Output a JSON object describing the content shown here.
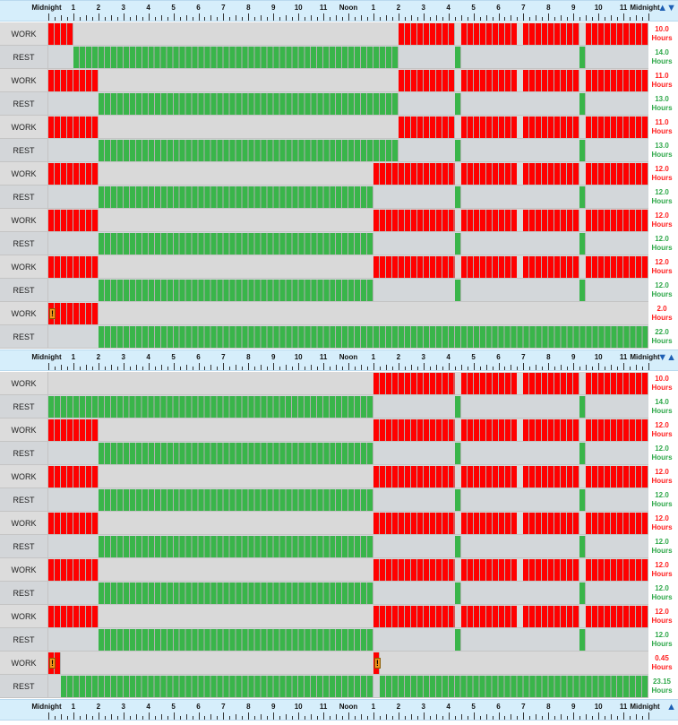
{
  "axis_labels": [
    "Midnight",
    "1",
    "2",
    "3",
    "4",
    "5",
    "6",
    "7",
    "8",
    "9",
    "10",
    "11",
    "Noon",
    "1",
    "2",
    "3",
    "4",
    "5",
    "6",
    "7",
    "8",
    "9",
    "10",
    "11",
    "Midnight"
  ],
  "colors": {
    "work": "#ff0000",
    "rest": "#39b54a",
    "warning": "#f7941d",
    "ruler": "#d6eefb",
    "arrow": "#1e5fb4"
  },
  "icons": {
    "scroll_up_down": "double-arrow-icon",
    "warning": "warning-icon"
  },
  "controls": {
    "arrows_top": "▲▼",
    "arrows_mid": "▼▲",
    "arrows_bottom": "▲"
  },
  "unit_label": "Hours",
  "warning_symbol": "!",
  "schedule_1": [
    {
      "label": "WORK",
      "type": "work",
      "hours": "10.0",
      "segments": [
        [
          0,
          1
        ],
        [
          14,
          16.25
        ],
        [
          16.5,
          18.75
        ],
        [
          19,
          21.25
        ],
        [
          21.5,
          24
        ]
      ],
      "warnings": []
    },
    {
      "label": "REST",
      "type": "rest",
      "hours": "14.0",
      "segments": [
        [
          1,
          14
        ],
        [
          16.25,
          16.5
        ],
        [
          21.25,
          21.5
        ]
      ],
      "warnings": []
    },
    {
      "label": "WORK",
      "type": "work",
      "hours": "11.0",
      "segments": [
        [
          0,
          2
        ],
        [
          14,
          16.25
        ],
        [
          16.5,
          18.75
        ],
        [
          19,
          21.25
        ],
        [
          21.5,
          24
        ]
      ],
      "warnings": []
    },
    {
      "label": "REST",
      "type": "rest",
      "hours": "13.0",
      "segments": [
        [
          2,
          14
        ],
        [
          16.25,
          16.5
        ],
        [
          21.25,
          21.5
        ]
      ],
      "warnings": []
    },
    {
      "label": "WORK",
      "type": "work",
      "hours": "11.0",
      "segments": [
        [
          0,
          2
        ],
        [
          14,
          16.25
        ],
        [
          16.5,
          18.75
        ],
        [
          19,
          21.25
        ],
        [
          21.5,
          24
        ]
      ],
      "warnings": []
    },
    {
      "label": "REST",
      "type": "rest",
      "hours": "13.0",
      "segments": [
        [
          2,
          14
        ],
        [
          16.25,
          16.5
        ],
        [
          21.25,
          21.5
        ]
      ],
      "warnings": []
    },
    {
      "label": "WORK",
      "type": "work",
      "hours": "12.0",
      "segments": [
        [
          0,
          2
        ],
        [
          13,
          16.25
        ],
        [
          16.5,
          18.75
        ],
        [
          19,
          21.25
        ],
        [
          21.5,
          24
        ]
      ],
      "warnings": []
    },
    {
      "label": "REST",
      "type": "rest",
      "hours": "12.0",
      "segments": [
        [
          2,
          13
        ],
        [
          16.25,
          16.5
        ],
        [
          21.25,
          21.5
        ]
      ],
      "warnings": []
    },
    {
      "label": "WORK",
      "type": "work",
      "hours": "12.0",
      "segments": [
        [
          0,
          2
        ],
        [
          13,
          16.25
        ],
        [
          16.5,
          18.75
        ],
        [
          19,
          21.25
        ],
        [
          21.5,
          24
        ]
      ],
      "warnings": []
    },
    {
      "label": "REST",
      "type": "rest",
      "hours": "12.0",
      "segments": [
        [
          2,
          13
        ],
        [
          16.25,
          16.5
        ],
        [
          21.25,
          21.5
        ]
      ],
      "warnings": []
    },
    {
      "label": "WORK",
      "type": "work",
      "hours": "12.0",
      "segments": [
        [
          0,
          2
        ],
        [
          13,
          16.25
        ],
        [
          16.5,
          18.75
        ],
        [
          19,
          21.25
        ],
        [
          21.5,
          24
        ]
      ],
      "warnings": []
    },
    {
      "label": "REST",
      "type": "rest",
      "hours": "12.0",
      "segments": [
        [
          2,
          13
        ],
        [
          16.25,
          16.5
        ],
        [
          21.25,
          21.5
        ]
      ],
      "warnings": []
    },
    {
      "label": "WORK",
      "type": "work",
      "hours": "2.0",
      "segments": [
        [
          0,
          2
        ]
      ],
      "warnings": [
        0
      ]
    },
    {
      "label": "REST",
      "type": "rest",
      "hours": "22.0",
      "segments": [
        [
          2,
          24
        ]
      ],
      "warnings": []
    }
  ],
  "schedule_2": [
    {
      "label": "WORK",
      "type": "work",
      "hours": "10.0",
      "segments": [
        [
          13,
          16.25
        ],
        [
          16.5,
          18.75
        ],
        [
          19,
          21.25
        ],
        [
          21.5,
          24
        ]
      ],
      "warnings": []
    },
    {
      "label": "REST",
      "type": "rest",
      "hours": "14.0",
      "segments": [
        [
          0,
          13
        ],
        [
          16.25,
          16.5
        ],
        [
          21.25,
          21.5
        ]
      ],
      "warnings": []
    },
    {
      "label": "WORK",
      "type": "work",
      "hours": "12.0",
      "segments": [
        [
          0,
          2
        ],
        [
          13,
          16.25
        ],
        [
          16.5,
          18.75
        ],
        [
          19,
          21.25
        ],
        [
          21.5,
          24
        ]
      ],
      "warnings": []
    },
    {
      "label": "REST",
      "type": "rest",
      "hours": "12.0",
      "segments": [
        [
          2,
          13
        ],
        [
          16.25,
          16.5
        ],
        [
          21.25,
          21.5
        ]
      ],
      "warnings": []
    },
    {
      "label": "WORK",
      "type": "work",
      "hours": "12.0",
      "segments": [
        [
          0,
          2
        ],
        [
          13,
          16.25
        ],
        [
          16.5,
          18.75
        ],
        [
          19,
          21.25
        ],
        [
          21.5,
          24
        ]
      ],
      "warnings": []
    },
    {
      "label": "REST",
      "type": "rest",
      "hours": "12.0",
      "segments": [
        [
          2,
          13
        ],
        [
          16.25,
          16.5
        ],
        [
          21.25,
          21.5
        ]
      ],
      "warnings": []
    },
    {
      "label": "WORK",
      "type": "work",
      "hours": "12.0",
      "segments": [
        [
          0,
          2
        ],
        [
          13,
          16.25
        ],
        [
          16.5,
          18.75
        ],
        [
          19,
          21.25
        ],
        [
          21.5,
          24
        ]
      ],
      "warnings": []
    },
    {
      "label": "REST",
      "type": "rest",
      "hours": "12.0",
      "segments": [
        [
          2,
          13
        ],
        [
          16.25,
          16.5
        ],
        [
          21.25,
          21.5
        ]
      ],
      "warnings": []
    },
    {
      "label": "WORK",
      "type": "work",
      "hours": "12.0",
      "segments": [
        [
          0,
          2
        ],
        [
          13,
          16.25
        ],
        [
          16.5,
          18.75
        ],
        [
          19,
          21.25
        ],
        [
          21.5,
          24
        ]
      ],
      "warnings": []
    },
    {
      "label": "REST",
      "type": "rest",
      "hours": "12.0",
      "segments": [
        [
          2,
          13
        ],
        [
          16.25,
          16.5
        ],
        [
          21.25,
          21.5
        ]
      ],
      "warnings": []
    },
    {
      "label": "WORK",
      "type": "work",
      "hours": "12.0",
      "segments": [
        [
          0,
          2
        ],
        [
          13,
          16.25
        ],
        [
          16.5,
          18.75
        ],
        [
          19,
          21.25
        ],
        [
          21.5,
          24
        ]
      ],
      "warnings": []
    },
    {
      "label": "REST",
      "type": "rest",
      "hours": "12.0",
      "segments": [
        [
          2,
          13
        ],
        [
          16.25,
          16.5
        ],
        [
          21.25,
          21.5
        ]
      ],
      "warnings": []
    },
    {
      "label": "WORK",
      "type": "work",
      "hours": "0.45",
      "segments": [
        [
          0,
          0.5
        ],
        [
          13,
          13.25
        ]
      ],
      "warnings": [
        0,
        13
      ]
    },
    {
      "label": "REST",
      "type": "rest",
      "hours": "23.15",
      "segments": [
        [
          0.5,
          13
        ],
        [
          13.25,
          24
        ]
      ],
      "warnings": []
    }
  ]
}
